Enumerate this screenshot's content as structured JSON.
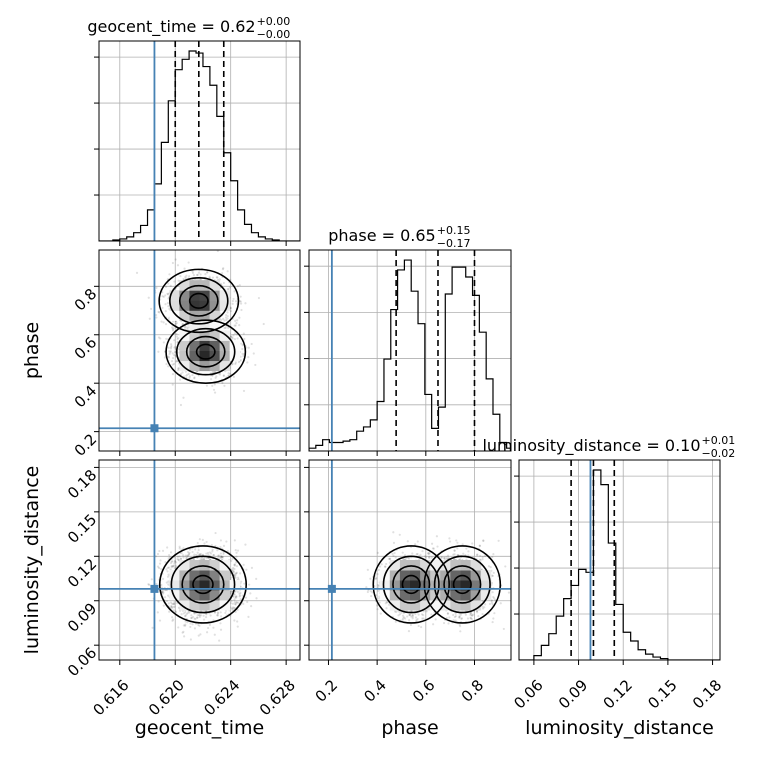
{
  "chart_data": {
    "type": "corner",
    "parameters": [
      "geocent_time",
      "phase",
      "luminosity_distance"
    ],
    "axis_labels": [
      "geocent_time",
      "phase",
      "luminosity_distance"
    ],
    "ranges": [
      [
        0.6145,
        0.629
      ],
      [
        0.12,
        0.95
      ],
      [
        0.05,
        0.185
      ]
    ],
    "ticks": [
      {
        "values": [
          0.616,
          0.62,
          0.624,
          0.628
        ],
        "labels": [
          "0.616",
          "0.620",
          "0.624",
          "0.628"
        ]
      },
      {
        "values": [
          0.2,
          0.4,
          0.6,
          0.8
        ],
        "labels": [
          "0.2",
          "0.4",
          "0.6",
          "0.8"
        ]
      },
      {
        "values": [
          0.06,
          0.09,
          0.12,
          0.15,
          0.18
        ],
        "labels": [
          "0.06",
          "0.09",
          "0.12",
          "0.15",
          "0.18"
        ]
      }
    ],
    "truths": [
      0.6185,
      0.214,
      0.098
    ],
    "truth_color": "#4682b4",
    "titles": [
      {
        "main": "geocent_time = 0.62",
        "sup": "+0.00",
        "sub": "−0.00"
      },
      {
        "main": "phase = 0.65",
        "sup": "+0.15",
        "sub": "−0.17"
      },
      {
        "main": "luminosity_distance = 0.10",
        "sup": "+0.01",
        "sub": "−0.02"
      }
    ],
    "quantiles": [
      [
        0.62,
        0.6217,
        0.6235
      ],
      [
        0.478,
        0.65,
        0.8
      ],
      [
        0.085,
        0.1,
        0.114
      ]
    ],
    "histograms": [
      {
        "edges": [
          0.6145,
          0.615,
          0.6155,
          0.616,
          0.6165,
          0.617,
          0.6175,
          0.618,
          0.6185,
          0.619,
          0.6195,
          0.62,
          0.6205,
          0.621,
          0.6215,
          0.622,
          0.6225,
          0.623,
          0.6235,
          0.624,
          0.6245,
          0.625,
          0.6255,
          0.626,
          0.6265,
          0.627,
          0.6275,
          0.628,
          0.6285,
          0.629
        ],
        "counts": [
          0,
          0,
          1,
          2,
          4,
          8,
          15,
          30,
          55,
          95,
          135,
          165,
          175,
          183,
          181,
          168,
          150,
          120,
          85,
          58,
          30,
          16,
          8,
          4,
          2,
          1,
          0,
          0,
          0
        ]
      },
      {
        "edges": [
          0.12,
          0.148,
          0.176,
          0.204,
          0.232,
          0.26,
          0.288,
          0.316,
          0.344,
          0.372,
          0.4,
          0.428,
          0.456,
          0.484,
          0.512,
          0.54,
          0.568,
          0.596,
          0.624,
          0.652,
          0.68,
          0.708,
          0.736,
          0.764,
          0.792,
          0.82,
          0.848,
          0.876,
          0.904,
          0.932,
          0.95
        ],
        "counts": [
          2,
          4,
          8,
          6,
          6,
          7,
          8,
          14,
          17,
          22,
          35,
          65,
          100,
          128,
          135,
          113,
          90,
          40,
          16,
          31,
          111,
          130,
          130,
          123,
          110,
          84,
          51,
          26,
          6,
          2
        ]
      },
      {
        "edges": [
          0.05,
          0.055,
          0.06,
          0.065,
          0.07,
          0.075,
          0.08,
          0.085,
          0.09,
          0.095,
          0.1,
          0.105,
          0.11,
          0.115,
          0.12,
          0.125,
          0.13,
          0.135,
          0.14,
          0.145,
          0.15,
          0.155,
          0.16,
          0.165,
          0.17,
          0.175,
          0.18,
          0.185
        ],
        "counts": [
          0,
          0,
          3,
          10,
          18,
          30,
          42,
          51,
          62,
          60,
          130,
          120,
          80,
          38,
          19,
          13,
          7,
          4,
          2,
          1,
          0,
          0,
          0,
          0,
          0,
          0,
          0
        ]
      }
    ],
    "pairs": [
      {
        "x": 0,
        "y": 1,
        "modes": [
          {
            "mx": 0.6217,
            "my": 0.74,
            "sx": 0.0011,
            "sy": 0.05,
            "w": 0.5
          },
          {
            "mx": 0.6222,
            "my": 0.53,
            "sx": 0.0011,
            "sy": 0.05,
            "w": 0.5
          }
        ]
      },
      {
        "x": 0,
        "y": 2,
        "modes": [
          {
            "mx": 0.622,
            "my": 0.101,
            "sx": 0.0012,
            "sy": 0.01,
            "w": 1.0
          }
        ]
      },
      {
        "x": 1,
        "y": 2,
        "modes": [
          {
            "mx": 0.54,
            "my": 0.101,
            "sx": 0.06,
            "sy": 0.01,
            "w": 0.5
          },
          {
            "mx": 0.75,
            "my": 0.101,
            "sx": 0.06,
            "sy": 0.01,
            "w": 0.5
          }
        ]
      }
    ],
    "grid": true
  }
}
